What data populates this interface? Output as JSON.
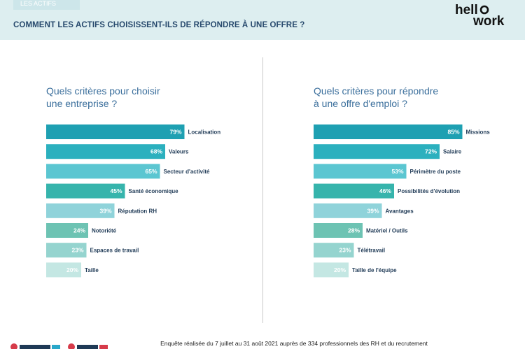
{
  "section_tag": "LES ACTIFS",
  "page_title": "COMMENT LES ACTIFS CHOISISSENT-ILS DE RÉPONDRE À UNE OFFRE ?",
  "logo": {
    "line1": "hell",
    "line2": "work",
    "icon": "hellowork-logo"
  },
  "footer": "Enquête réalisée du 7 juillet au 31 août 2021 auprès de 334 professionnels des RH et du recrutement",
  "colors": {
    "header_bg": "#ddeef0",
    "title": "#27496d",
    "panel_title": "#3b6f9c"
  },
  "chart_data": [
    {
      "type": "bar",
      "title_line1": "Quels critères pour choisir",
      "title_line2": "une entreprise ?",
      "categories": [
        "Localisation",
        "Valeurs",
        "Secteur d'activité",
        "Santé économique",
        "Réputation RH",
        "Notoriété",
        "Espaces de travail",
        "Taille"
      ],
      "values": [
        79,
        68,
        65,
        45,
        39,
        24,
        23,
        20
      ],
      "value_labels": [
        "79%",
        "68%",
        "65%",
        "45%",
        "39%",
        "24%",
        "23%",
        "20%"
      ],
      "colors": [
        "#1ea0b2",
        "#2bb0be",
        "#5bc6d1",
        "#36b4ac",
        "#8fd3da",
        "#6dc3b3",
        "#95d4cf",
        "#c4e7e3"
      ],
      "xlim": [
        0,
        100
      ]
    },
    {
      "type": "bar",
      "title_line1": "Quels critères pour répondre",
      "title_line2": "à une offre d'emploi ?",
      "categories": [
        "Missions",
        "Salaire",
        "Périmètre du poste",
        "Possibilités d'évolution",
        "Avantages",
        "Matériel / Outils",
        "Télétravail",
        "Taille de l'équipe"
      ],
      "values": [
        85,
        72,
        53,
        46,
        39,
        28,
        23,
        20
      ],
      "value_labels": [
        "85%",
        "72%",
        "53%",
        "46%",
        "39%",
        "28%",
        "23%",
        "20%"
      ],
      "colors": [
        "#1ea0b2",
        "#2bb0be",
        "#5bc6d1",
        "#36b4ac",
        "#8fd3da",
        "#6dc3b3",
        "#95d4cf",
        "#c4e7e3"
      ],
      "xlim": [
        0,
        100
      ]
    }
  ]
}
